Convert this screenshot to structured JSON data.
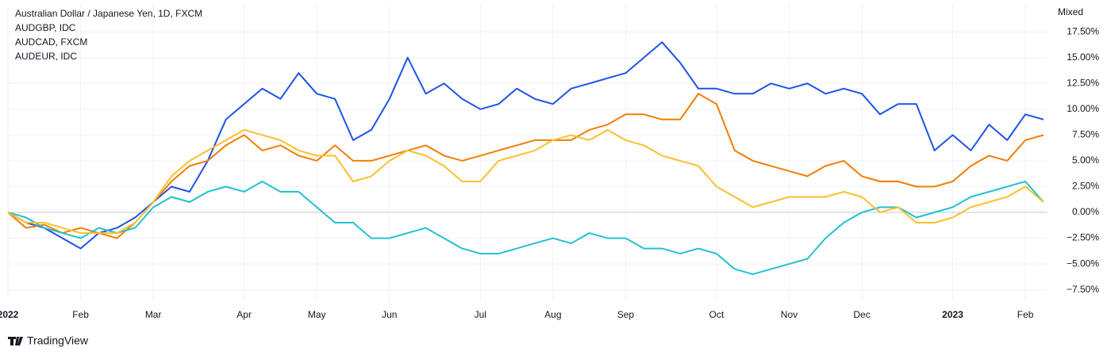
{
  "chart_data": {
    "type": "line",
    "scale_label": "Mixed",
    "footer": "TradingView",
    "categories": [
      "2022",
      null,
      null,
      null,
      "Feb",
      null,
      null,
      null,
      "Mar",
      null,
      null,
      null,
      null,
      "Apr",
      null,
      null,
      null,
      "May",
      null,
      null,
      null,
      "Jun",
      null,
      null,
      null,
      null,
      "Jul",
      null,
      null,
      null,
      "Aug",
      null,
      null,
      null,
      "Sep",
      null,
      null,
      null,
      null,
      "Oct",
      null,
      null,
      null,
      "Nov",
      null,
      null,
      null,
      "Dec",
      null,
      null,
      null,
      null,
      "2023",
      null,
      null,
      null,
      "Feb",
      null
    ],
    "series": [
      {
        "name": "Australian Dollar / Japanese Yen, 1D, FXCM",
        "color": "#1e53e5",
        "values": [
          0,
          -1,
          -1.5,
          -2.5,
          -3.5,
          -2,
          -1.5,
          -0.5,
          1,
          2.5,
          2,
          5,
          9,
          10.5,
          12,
          11,
          13.5,
          11.5,
          11,
          7,
          8,
          11,
          15,
          11.5,
          12.5,
          11,
          10,
          10.5,
          12,
          11,
          10.5,
          12,
          12.5,
          13,
          13.5,
          15,
          16.5,
          14.5,
          12,
          12,
          11.5,
          11.5,
          12.5,
          12,
          12.5,
          11.5,
          12,
          11.5,
          9.5,
          10.5,
          10.5,
          6,
          7.5,
          6,
          8.5,
          7,
          9.5,
          9
        ]
      },
      {
        "name": "AUDGBP, IDC",
        "color": "#f57c00",
        "values": [
          0,
          -1.5,
          -1.2,
          -2,
          -1.5,
          -2,
          -2.5,
          -1,
          1,
          3,
          4.5,
          5,
          6.5,
          7.5,
          6,
          6.5,
          5.5,
          5,
          6.5,
          5,
          5,
          5.5,
          6,
          6.5,
          5.5,
          5,
          5.5,
          6,
          6.5,
          7,
          7,
          7,
          8,
          8.5,
          9.5,
          9.5,
          9,
          9,
          11.5,
          10.5,
          6,
          5,
          4.5,
          4,
          3.5,
          4.5,
          5,
          3.5,
          3,
          3,
          2.5,
          2.5,
          3,
          4.5,
          5.5,
          5,
          7,
          7.5
        ]
      },
      {
        "name": "AUDCAD, FXCM",
        "color": "#22c1d1",
        "values": [
          0,
          -0.5,
          -1.5,
          -2,
          -2.5,
          -1.5,
          -2,
          -1.5,
          0.5,
          1.5,
          1,
          2,
          2.5,
          2,
          3,
          2,
          2,
          0.5,
          -1,
          -1,
          -2.5,
          -2.5,
          -2,
          -1.5,
          -2.5,
          -3.5,
          -4,
          -4,
          -3.5,
          -3,
          -2.5,
          -3,
          -2,
          -2.5,
          -2.5,
          -3.5,
          -3.5,
          -4,
          -3.5,
          -4,
          -5.5,
          -6,
          -5.5,
          -5,
          -4.5,
          -2.5,
          -1,
          0,
          0.5,
          0.5,
          -0.5,
          0,
          0.5,
          1.5,
          2,
          2.5,
          3,
          1
        ]
      },
      {
        "name": "AUDEUR, IDC",
        "color": "#fbc02d",
        "values": [
          0,
          -1,
          -1,
          -1.5,
          -2,
          -2,
          -2,
          -1,
          1,
          3.5,
          5,
          6,
          7,
          8,
          7.5,
          7,
          6,
          5.5,
          5.5,
          3,
          3.5,
          5,
          6,
          5.5,
          4.5,
          3,
          3,
          5,
          5.5,
          6,
          7,
          7.5,
          7,
          8,
          7,
          6.5,
          5.5,
          5,
          4.5,
          2.5,
          1.5,
          0.5,
          1,
          1.5,
          1.5,
          1.5,
          2,
          1.5,
          0,
          0.5,
          -1,
          -1,
          -0.5,
          0.5,
          1,
          1.5,
          2.5,
          1
        ]
      }
    ],
    "ylim": [
      -8.6,
      20.2
    ],
    "yticks": [
      {
        "value": -7.5,
        "label": "−7.50%"
      },
      {
        "value": -5,
        "label": "−5.00%"
      },
      {
        "value": -2.5,
        "label": "−2.50%"
      },
      {
        "value": 0,
        "label": "0.00%"
      },
      {
        "value": 2.5,
        "label": "2.50%"
      },
      {
        "value": 5,
        "label": "5.00%"
      },
      {
        "value": 7.5,
        "label": "7.50%"
      },
      {
        "value": 10,
        "label": "10.00%"
      },
      {
        "value": 12.5,
        "label": "12.50%"
      },
      {
        "value": 15,
        "label": "15.00%"
      },
      {
        "value": 17.5,
        "label": "17.50%"
      }
    ],
    "grid": true
  }
}
